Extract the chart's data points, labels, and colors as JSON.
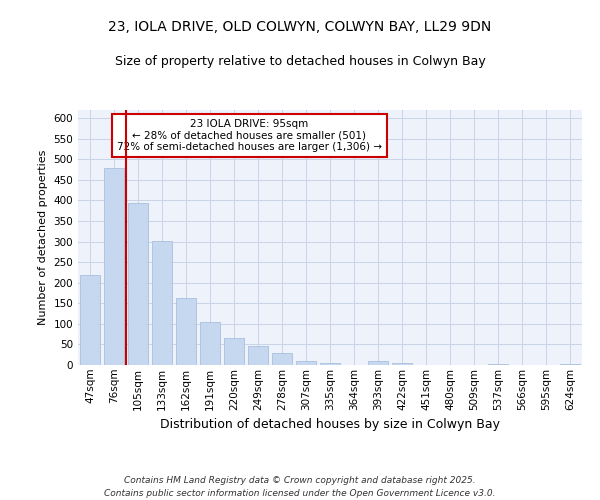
{
  "title_line1": "23, IOLA DRIVE, OLD COLWYN, COLWYN BAY, LL29 9DN",
  "title_line2": "Size of property relative to detached houses in Colwyn Bay",
  "xlabel": "Distribution of detached houses by size in Colwyn Bay",
  "ylabel": "Number of detached properties",
  "categories": [
    "47sqm",
    "76sqm",
    "105sqm",
    "133sqm",
    "162sqm",
    "191sqm",
    "220sqm",
    "249sqm",
    "278sqm",
    "307sqm",
    "335sqm",
    "364sqm",
    "393sqm",
    "422sqm",
    "451sqm",
    "480sqm",
    "509sqm",
    "537sqm",
    "566sqm",
    "595sqm",
    "624sqm"
  ],
  "values": [
    218,
    478,
    393,
    302,
    163,
    105,
    65,
    47,
    30,
    9,
    6,
    0,
    10,
    4,
    1,
    0,
    0,
    3,
    0,
    0,
    3
  ],
  "bar_color": "#c5d8f0",
  "bar_edge_color": "#a0b8d8",
  "grid_color": "#c8d4e8",
  "background_color": "#eef2fa",
  "vline_color": "#cc0000",
  "vline_x": 1.5,
  "annotation_text": "23 IOLA DRIVE: 95sqm\n← 28% of detached houses are smaller (501)\n72% of semi-detached houses are larger (1,306) →",
  "annotation_box_color": "#ffffff",
  "annotation_box_edge": "#cc0000",
  "footnote_line1": "Contains HM Land Registry data © Crown copyright and database right 2025.",
  "footnote_line2": "Contains public sector information licensed under the Open Government Licence v3.0.",
  "ylim": [
    0,
    620
  ],
  "yticks": [
    0,
    50,
    100,
    150,
    200,
    250,
    300,
    350,
    400,
    450,
    500,
    550,
    600
  ],
  "title1_fontsize": 10,
  "title2_fontsize": 9,
  "ylabel_fontsize": 8,
  "xlabel_fontsize": 9,
  "tick_fontsize": 7.5,
  "footnote_fontsize": 6.5
}
